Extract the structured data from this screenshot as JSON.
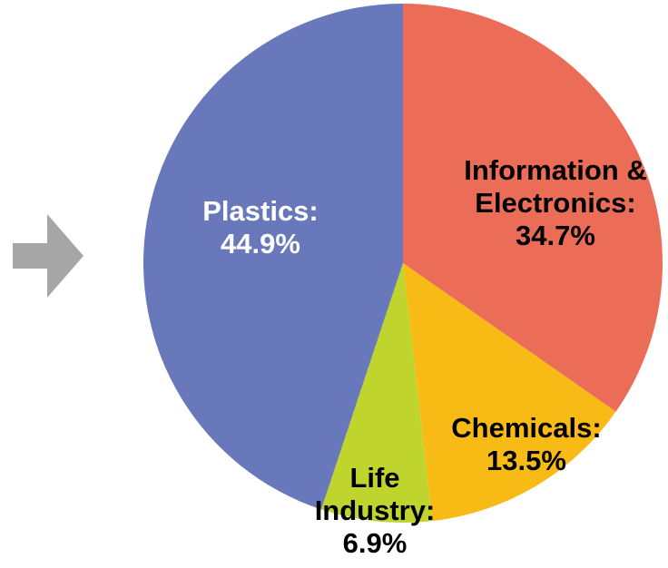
{
  "chart_data": {
    "type": "pie",
    "start": "top",
    "direction": "clockwise",
    "slices": [
      {
        "name": "Information & Electronics",
        "value": 34.7,
        "label_lines": [
          "Information &",
          "Electronics:",
          "34.7%"
        ],
        "color": "#ec6d57",
        "label_color": "#000000"
      },
      {
        "name": "Chemicals",
        "value": 13.5,
        "label_lines": [
          "Chemicals:",
          "13.5%"
        ],
        "color": "#f8bb16",
        "label_color": "#000000"
      },
      {
        "name": "Life Industry",
        "value": 6.9,
        "label_lines": [
          "Life",
          "Industry:",
          "6.9%"
        ],
        "color": "#bfd52d",
        "label_color": "#000000"
      },
      {
        "name": "Plastics",
        "value": 44.9,
        "label_lines": [
          "Plastics:",
          "44.9%"
        ],
        "color": "#6878ba",
        "label_color": "#ffffff"
      }
    ]
  },
  "arrow": {
    "icon": "right-arrow-icon",
    "color": "#a6a6a6"
  }
}
